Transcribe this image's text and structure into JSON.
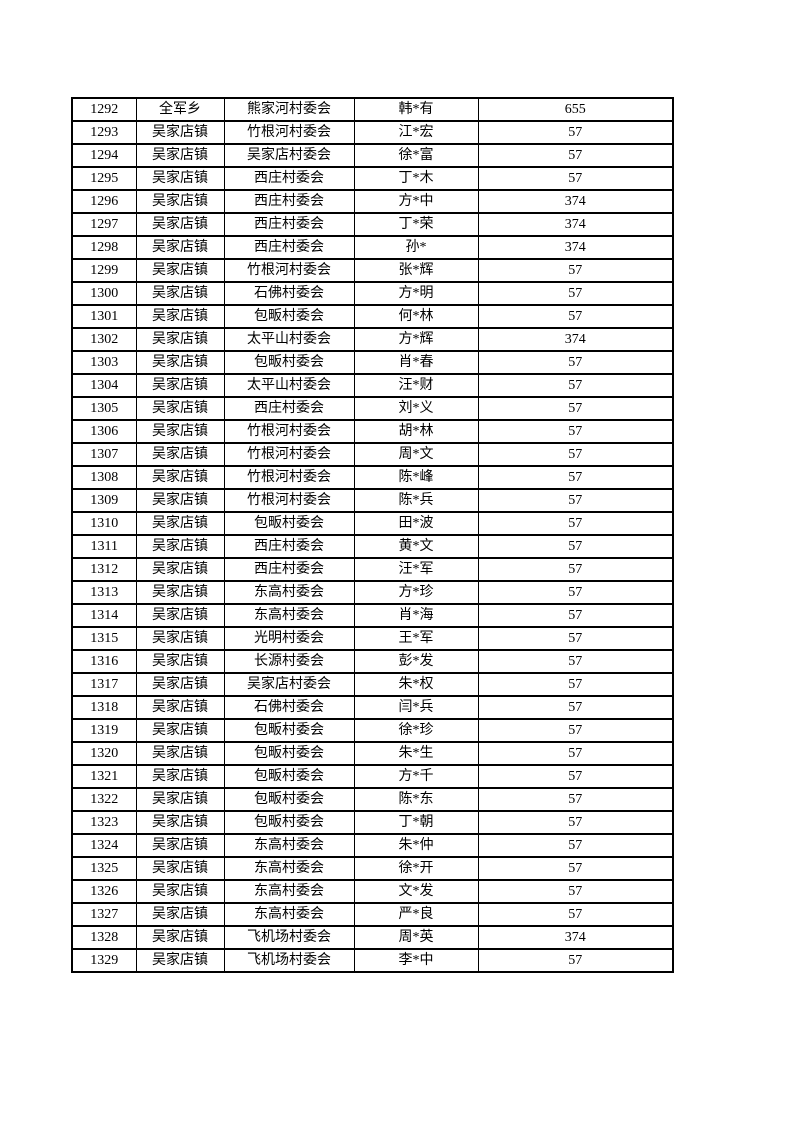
{
  "page": {
    "background_color": "#ffffff",
    "border_color": "#000000",
    "text_color": "#000000"
  },
  "table": {
    "visible_header": false,
    "column_keys": [
      "serial",
      "town",
      "village",
      "person",
      "amount"
    ],
    "rows": [
      [
        "1292",
        "全军乡",
        "熊家河村委会",
        "韩*有",
        "655"
      ],
      [
        "1293",
        "吴家店镇",
        "竹根河村委会",
        "江*宏",
        "57"
      ],
      [
        "1294",
        "吴家店镇",
        "吴家店村委会",
        "徐*富",
        "57"
      ],
      [
        "1295",
        "吴家店镇",
        "西庄村委会",
        "丁*木",
        "57"
      ],
      [
        "1296",
        "吴家店镇",
        "西庄村委会",
        "方*中",
        "374"
      ],
      [
        "1297",
        "吴家店镇",
        "西庄村委会",
        "丁*荣",
        "374"
      ],
      [
        "1298",
        "吴家店镇",
        "西庄村委会",
        "孙*",
        "374"
      ],
      [
        "1299",
        "吴家店镇",
        "竹根河村委会",
        "张*辉",
        "57"
      ],
      [
        "1300",
        "吴家店镇",
        "石佛村委会",
        "方*明",
        "57"
      ],
      [
        "1301",
        "吴家店镇",
        "包畈村委会",
        "何*林",
        "57"
      ],
      [
        "1302",
        "吴家店镇",
        "太平山村委会",
        "方*辉",
        "374"
      ],
      [
        "1303",
        "吴家店镇",
        "包畈村委会",
        "肖*春",
        "57"
      ],
      [
        "1304",
        "吴家店镇",
        "太平山村委会",
        "汪*财",
        "57"
      ],
      [
        "1305",
        "吴家店镇",
        "西庄村委会",
        "刘*义",
        "57"
      ],
      [
        "1306",
        "吴家店镇",
        "竹根河村委会",
        "胡*林",
        "57"
      ],
      [
        "1307",
        "吴家店镇",
        "竹根河村委会",
        "周*文",
        "57"
      ],
      [
        "1308",
        "吴家店镇",
        "竹根河村委会",
        "陈*峰",
        "57"
      ],
      [
        "1309",
        "吴家店镇",
        "竹根河村委会",
        "陈*兵",
        "57"
      ],
      [
        "1310",
        "吴家店镇",
        "包畈村委会",
        "田*波",
        "57"
      ],
      [
        "1311",
        "吴家店镇",
        "西庄村委会",
        "黄*文",
        "57"
      ],
      [
        "1312",
        "吴家店镇",
        "西庄村委会",
        "汪*军",
        "57"
      ],
      [
        "1313",
        "吴家店镇",
        "东高村委会",
        "方*珍",
        "57"
      ],
      [
        "1314",
        "吴家店镇",
        "东高村委会",
        "肖*海",
        "57"
      ],
      [
        "1315",
        "吴家店镇",
        "光明村委会",
        "王*军",
        "57"
      ],
      [
        "1316",
        "吴家店镇",
        "长源村委会",
        "彭*发",
        "57"
      ],
      [
        "1317",
        "吴家店镇",
        "吴家店村委会",
        "朱*权",
        "57"
      ],
      [
        "1318",
        "吴家店镇",
        "石佛村委会",
        "闫*兵",
        "57"
      ],
      [
        "1319",
        "吴家店镇",
        "包畈村委会",
        "徐*珍",
        "57"
      ],
      [
        "1320",
        "吴家店镇",
        "包畈村委会",
        "朱*生",
        "57"
      ],
      [
        "1321",
        "吴家店镇",
        "包畈村委会",
        "方*千",
        "57"
      ],
      [
        "1322",
        "吴家店镇",
        "包畈村委会",
        "陈*东",
        "57"
      ],
      [
        "1323",
        "吴家店镇",
        "包畈村委会",
        "丁*朝",
        "57"
      ],
      [
        "1324",
        "吴家店镇",
        "东高村委会",
        "朱*仲",
        "57"
      ],
      [
        "1325",
        "吴家店镇",
        "东高村委会",
        "徐*开",
        "57"
      ],
      [
        "1326",
        "吴家店镇",
        "东高村委会",
        "文*发",
        "57"
      ],
      [
        "1327",
        "吴家店镇",
        "东高村委会",
        "严*良",
        "57"
      ],
      [
        "1328",
        "吴家店镇",
        "飞机场村委会",
        "周*英",
        "374"
      ],
      [
        "1329",
        "吴家店镇",
        "飞机场村委会",
        "李*中",
        "57"
      ]
    ]
  }
}
